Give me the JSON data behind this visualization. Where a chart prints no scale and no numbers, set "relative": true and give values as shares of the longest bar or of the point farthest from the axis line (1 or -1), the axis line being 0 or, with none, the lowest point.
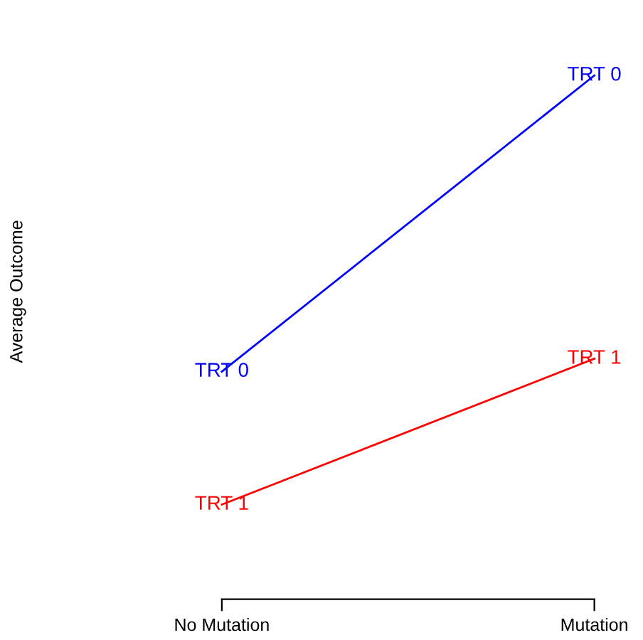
{
  "chart_data": {
    "type": "line",
    "relative": true,
    "ylabel": "Average Outcome",
    "categories": [
      "No Mutation",
      "Mutation"
    ],
    "series": [
      {
        "name": "TRT 0",
        "color": "#0000ff",
        "values": [
          0.31,
          1
        ]
      },
      {
        "name": "TRT 1",
        "color": "#ff0000",
        "values": [
          0,
          0.34
        ]
      }
    ],
    "legend": false,
    "grid": false,
    "marker": "none",
    "line_style": "solid"
  }
}
